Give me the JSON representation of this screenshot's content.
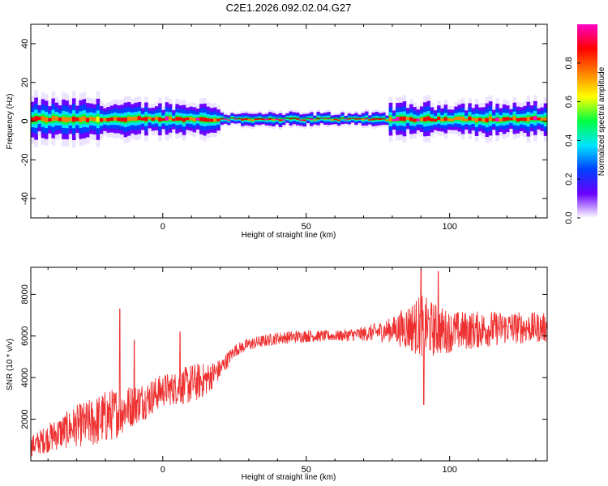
{
  "title": "C2E1.2026.092.02.04.G27",
  "chart_data": [
    {
      "type": "heatmap",
      "xlabel": "Height of straight line (km)",
      "ylabel": "Frequency (Hz)",
      "xlim": [
        -46,
        134
      ],
      "ylim": [
        -50,
        50
      ],
      "x_ticks": [
        0,
        50,
        100
      ],
      "y_ticks": [
        -40,
        -20,
        0,
        20,
        40
      ],
      "grid": false,
      "colorbar": {
        "label": "Normalized spectral amplitude",
        "range": [
          0.0,
          1.0
        ],
        "ticks": [
          "0.0",
          "0.2",
          "0.4",
          "0.6",
          "0.8"
        ],
        "colormap": [
          "#ffffff",
          "#6a00ff",
          "#0040ff",
          "#00e5ff",
          "#00ff40",
          "#ffff00",
          "#ff8000",
          "#ff0000",
          "#ff00c8"
        ]
      },
      "band": {
        "description_center_hz": 1,
        "segments": [
          {
            "x_start": -46,
            "x_end": -20,
            "spread_hz": 6,
            "peak": 0.9
          },
          {
            "x_start": -20,
            "x_end": 20,
            "spread_hz": 5,
            "peak": 0.95
          },
          {
            "x_start": 20,
            "x_end": 78,
            "spread_hz": 2,
            "peak": 1.0
          },
          {
            "x_start": 78,
            "x_end": 134,
            "spread_hz": 5,
            "peak": 0.95
          }
        ]
      }
    },
    {
      "type": "line",
      "xlabel": "Height of straight line (km)",
      "ylabel": "SNR (10 * v/v)",
      "xlim": [
        -46,
        134
      ],
      "ylim": [
        0,
        9300
      ],
      "x_ticks": [
        0,
        50,
        100
      ],
      "y_ticks": [
        2000,
        4000,
        6000,
        8000
      ],
      "grid": false,
      "color": "#ee3030",
      "envelope": {
        "x": [
          -46,
          -40,
          -30,
          -25,
          -20,
          -15,
          -10,
          -5,
          0,
          5,
          10,
          15,
          20,
          25,
          30,
          40,
          50,
          60,
          70,
          80,
          85,
          90,
          95,
          100,
          110,
          120,
          134
        ],
        "mean": [
          700,
          1100,
          1700,
          1800,
          2100,
          2400,
          2700,
          3000,
          3400,
          3500,
          3700,
          3900,
          4400,
          5300,
          5600,
          5900,
          6000,
          6000,
          6100,
          6300,
          6400,
          6500,
          6300,
          6200,
          6300,
          6400,
          6400
        ],
        "amplitude": [
          500,
          700,
          1000,
          1200,
          1300,
          1200,
          1000,
          900,
          800,
          800,
          1000,
          800,
          500,
          300,
          300,
          300,
          300,
          250,
          350,
          600,
          1100,
          1500,
          1300,
          1000,
          900,
          800,
          700
        ]
      },
      "spikes": [
        {
          "x": -15,
          "y": 7300
        },
        {
          "x": -10,
          "y": 5800
        },
        {
          "x": 6,
          "y": 6200
        },
        {
          "x": 90,
          "y": 9200
        },
        {
          "x": 91,
          "y": 2700
        },
        {
          "x": 96,
          "y": 9100
        }
      ]
    }
  ]
}
